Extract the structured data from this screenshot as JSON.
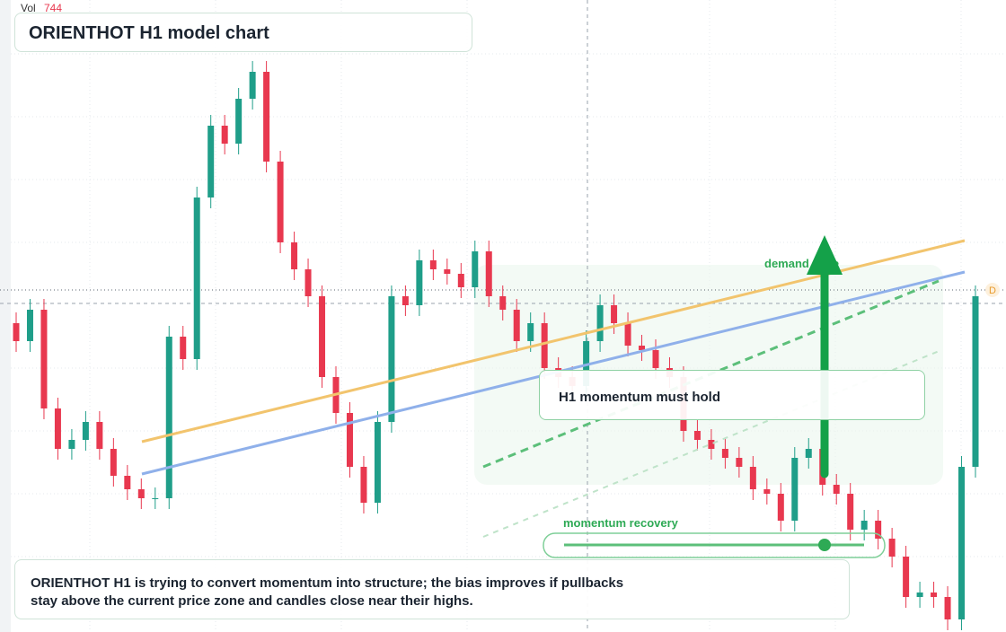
{
  "header": {
    "vol_label": "Vol",
    "vol_value": 744,
    "title": "ORIENTHOT H1 model chart"
  },
  "annotations": {
    "demand_zone": "demand zone",
    "momentum_hold": "H1 momentum must hold",
    "momentum_recovery": "momentum recovery",
    "marker": "D"
  },
  "note": {
    "line1": "ORIENTHOT H1 is trying to convert momentum into structure; the bias improves if pullbacks",
    "line2": "stay above the current price zone and candles close near their highs."
  },
  "chart_data": {
    "type": "candlestick",
    "ylim": [
      0,
      704
    ],
    "up_color": "#1f9e89",
    "down_color": "#e8384f",
    "series": [
      {
        "open": [
          344,
          324,
          359,
          249,
          204,
          214,
          234,
          204,
          174,
          159,
          149,
          149,
          329,
          304,
          484,
          564,
          544,
          594,
          624,
          524,
          434,
          404,
          374,
          284,
          244,
          184,
          144,
          234,
          374,
          364,
          414,
          404,
          399,
          384,
          424,
          374,
          359,
          324,
          344,
          294,
          284,
          274,
          324,
          364,
          344,
          319,
          314,
          294,
          284,
          224,
          214,
          204,
          194,
          184,
          159,
          154,
          124,
          194,
          204,
          164,
          154,
          114,
          124,
          104,
          84,
          39,
          44,
          39,
          14,
          184
        ],
        "high": [
          356,
          371,
          371,
          261,
          226,
          246,
          246,
          216,
          186,
          171,
          161,
          341,
          341,
          496,
          576,
          576,
          606,
          636,
          636,
          536,
          446,
          416,
          386,
          296,
          256,
          196,
          246,
          386,
          386,
          426,
          426,
          416,
          411,
          436,
          436,
          386,
          371,
          356,
          356,
          306,
          296,
          336,
          376,
          376,
          356,
          331,
          326,
          306,
          296,
          236,
          226,
          216,
          206,
          196,
          171,
          166,
          206,
          216,
          216,
          176,
          166,
          136,
          136,
          116,
          96,
          56,
          56,
          51,
          196,
          386
        ],
        "low": [
          312,
          312,
          237,
          192,
          192,
          202,
          192,
          162,
          147,
          137,
          137,
          137,
          292,
          292,
          472,
          532,
          532,
          582,
          512,
          422,
          392,
          362,
          272,
          232,
          172,
          132,
          132,
          222,
          352,
          352,
          392,
          387,
          372,
          372,
          362,
          347,
          312,
          312,
          282,
          272,
          262,
          262,
          312,
          332,
          307,
          302,
          282,
          272,
          212,
          202,
          192,
          182,
          172,
          147,
          142,
          112,
          112,
          182,
          152,
          142,
          102,
          102,
          92,
          72,
          27,
          27,
          27,
          2,
          2,
          172
        ],
        "close": [
          324,
          359,
          249,
          204,
          214,
          234,
          204,
          174,
          159,
          149,
          149,
          329,
          304,
          484,
          564,
          544,
          594,
          624,
          524,
          434,
          404,
          374,
          284,
          244,
          184,
          144,
          234,
          374,
          364,
          414,
          404,
          399,
          384,
          424,
          374,
          359,
          324,
          344,
          294,
          284,
          274,
          324,
          364,
          344,
          319,
          314,
          294,
          284,
          224,
          214,
          204,
          194,
          184,
          159,
          154,
          124,
          194,
          204,
          164,
          154,
          114,
          124,
          104,
          84,
          39,
          44,
          39,
          14,
          184,
          374
        ]
      }
    ]
  }
}
